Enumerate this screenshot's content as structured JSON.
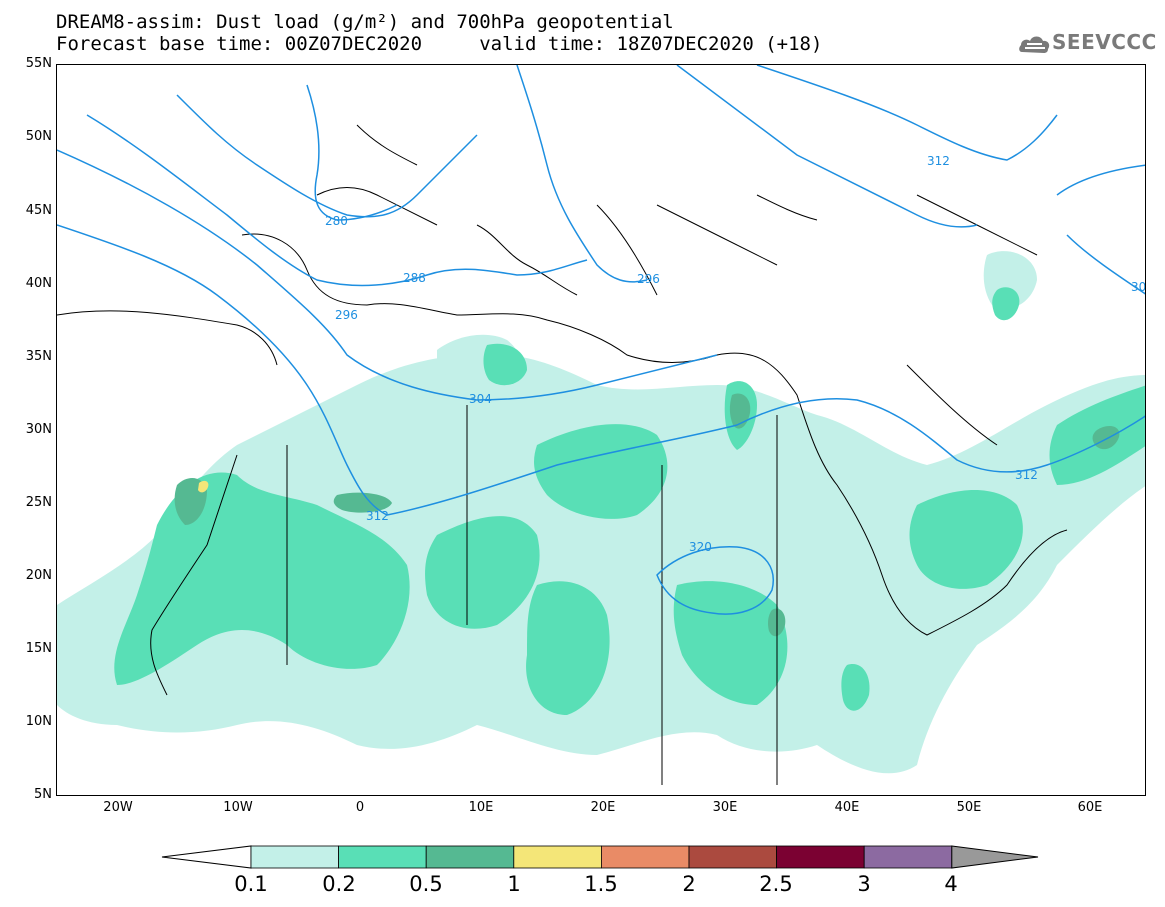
{
  "title": {
    "line1": "DREAM8-assim: Dust load (g/m²) and 700hPa geopotential",
    "line2": "Forecast base time: 00Z07DEC2020     valid time: 18Z07DEC2020 (+18)"
  },
  "logo": {
    "text": "SEEVCCC",
    "icon": "cloud-icon"
  },
  "axes": {
    "lat_labels": [
      "55N",
      "50N",
      "45N",
      "40N",
      "35N",
      "30N",
      "25N",
      "20N",
      "15N",
      "10N",
      "5N"
    ],
    "lon_labels": [
      "20W",
      "10W",
      "0",
      "10E",
      "20E",
      "30E",
      "40E",
      "50E",
      "60E"
    ]
  },
  "contours": {
    "labels": [
      "280",
      "288",
      "296",
      "304",
      "312",
      "312",
      "312",
      "320",
      "296",
      "30"
    ]
  },
  "colorbar": {
    "labels": [
      "0.1",
      "0.2",
      "0.5",
      "1",
      "1.5",
      "2",
      "2.5",
      "3",
      "4"
    ],
    "colors": [
      "#ffffff",
      "#c3f0e8",
      "#59dfb6",
      "#55b992",
      "#f4e678",
      "#e98b66",
      "#ab4a3f",
      "#7b0132",
      "#8c6aa1",
      "#999999"
    ]
  },
  "dust_colors": {
    "low": "#c3f0e8",
    "mid": "#59dfb6",
    "high": "#55b992",
    "peak": "#f4e678"
  },
  "line_colors": {
    "contour": "#1e8fe0",
    "coast": "#000000"
  }
}
